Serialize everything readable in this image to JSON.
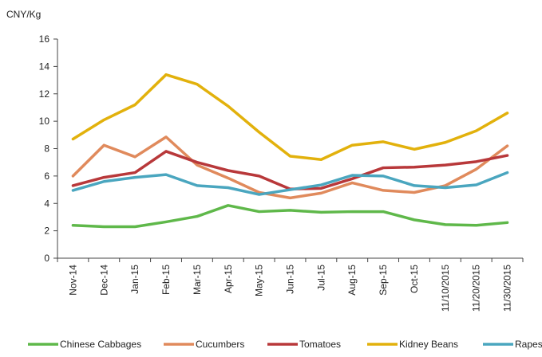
{
  "chart_data": {
    "type": "line",
    "y_label": "CNY/Kg",
    "categories": [
      "Nov-14",
      "Dec-14",
      "Jan-15",
      "Feb-15",
      "Mar-15",
      "Apr-15",
      "May-15",
      "Jun-15",
      "Jul-15",
      "Aug-15",
      "Sep-15",
      "Oct-15",
      "11/10/2015",
      "11/20/2015",
      "11/30/2015"
    ],
    "series": [
      {
        "name": "Chinese Cabbages",
        "color": "#5fb84a",
        "values": [
          2.4,
          2.3,
          2.3,
          2.65,
          3.05,
          3.85,
          3.4,
          3.5,
          3.35,
          3.4,
          3.4,
          2.8,
          2.45,
          2.4,
          2.6
        ]
      },
      {
        "name": "Cucumbers",
        "color": "#e08a5c",
        "values": [
          6.0,
          8.25,
          7.4,
          8.85,
          6.8,
          5.85,
          4.8,
          4.4,
          4.75,
          5.5,
          4.95,
          4.8,
          5.3,
          6.5,
          8.2
        ]
      },
      {
        "name": "Tomatoes",
        "color": "#b8383a",
        "values": [
          5.3,
          5.9,
          6.25,
          7.8,
          7.0,
          6.4,
          6.0,
          5.05,
          5.1,
          5.8,
          6.6,
          6.65,
          6.8,
          7.05,
          7.5
        ]
      },
      {
        "name": "Kidney Beans",
        "color": "#e2b10c",
        "values": [
          8.7,
          10.1,
          11.2,
          13.4,
          12.7,
          11.1,
          9.2,
          7.45,
          7.2,
          8.25,
          8.5,
          7.95,
          8.45,
          9.3,
          10.6
        ]
      },
      {
        "name": "Rapes",
        "color": "#4aa6bf",
        "values": [
          4.95,
          5.6,
          5.9,
          6.1,
          5.3,
          5.15,
          4.65,
          5.0,
          5.35,
          6.05,
          6.0,
          5.3,
          5.15,
          5.35,
          6.25
        ]
      }
    ],
    "ylim": [
      0,
      16
    ],
    "yticks": [
      0,
      2,
      4,
      6,
      8,
      10,
      12,
      14,
      16
    ]
  }
}
